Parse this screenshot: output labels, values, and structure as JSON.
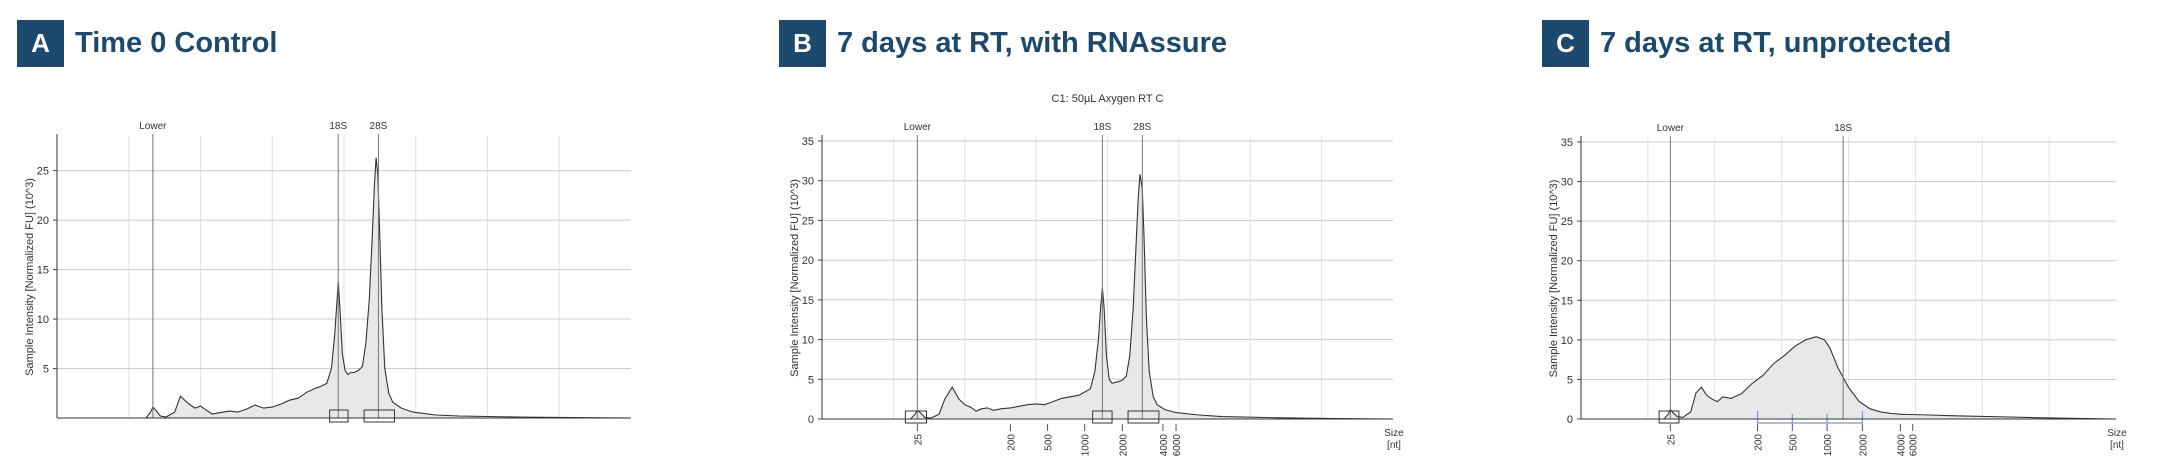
{
  "panels": [
    {
      "letter": "A",
      "title": "Time 0 Control"
    },
    {
      "letter": "B",
      "title": "7 days at RT, with RNAssure"
    },
    {
      "letter": "C",
      "title": "7 days at RT, unprotected"
    }
  ],
  "colors": {
    "badge": "#1c4a6e",
    "title": "#1c4a6e",
    "trace": "#333333",
    "fill": "#e8e8e8",
    "region_c": "#7c93c8",
    "grid": "#cccccc"
  },
  "chart_data": [
    {
      "type": "area",
      "title": "",
      "xlabel": "",
      "ylabel": "Sample Intensity [Normalized FU] (10^3)",
      "ylim": [
        0,
        28.5
      ],
      "yticks": [
        5,
        10,
        15,
        20,
        25
      ],
      "x_tick_labels": [],
      "markers": [
        {
          "label": "Lower",
          "x": 0.167
        },
        {
          "label": "18S",
          "x": 0.49
        },
        {
          "label": "28S",
          "x": 0.56
        }
      ],
      "x": [
        0,
        0.12,
        0.155,
        0.163,
        0.167,
        0.172,
        0.18,
        0.19,
        0.205,
        0.215,
        0.228,
        0.24,
        0.25,
        0.26,
        0.27,
        0.28,
        0.29,
        0.3,
        0.315,
        0.33,
        0.345,
        0.36,
        0.375,
        0.39,
        0.405,
        0.42,
        0.435,
        0.45,
        0.46,
        0.47,
        0.478,
        0.484,
        0.488,
        0.49,
        0.493,
        0.497,
        0.502,
        0.507,
        0.512,
        0.518,
        0.525,
        0.532,
        0.538,
        0.544,
        0.549,
        0.553,
        0.556,
        0.559,
        0.562,
        0.566,
        0.571,
        0.578,
        0.585,
        0.6,
        0.62,
        0.66,
        0.7,
        0.8,
        0.9,
        1.0
      ],
      "values": [
        0,
        0,
        0,
        0.6,
        1.1,
        0.8,
        0.2,
        0.1,
        0.6,
        2.2,
        1.5,
        1.0,
        1.2,
        0.8,
        0.4,
        0.5,
        0.6,
        0.7,
        0.6,
        0.9,
        1.3,
        1.0,
        1.1,
        1.4,
        1.8,
        2.0,
        2.6,
        3.0,
        3.2,
        3.5,
        5.0,
        8.5,
        12.0,
        13.8,
        11.0,
        6.5,
        4.8,
        4.4,
        4.6,
        4.6,
        4.8,
        5.2,
        7.5,
        12.0,
        18.0,
        23.5,
        26.3,
        24.5,
        19.0,
        11.0,
        5.0,
        2.5,
        1.6,
        1.0,
        0.6,
        0.3,
        0.2,
        0.1,
        0.05,
        0.0
      ],
      "regions": [
        {
          "x0": 0.475,
          "x1": 0.507,
          "color": "#333333"
        },
        {
          "x0": 0.535,
          "x1": 0.588,
          "color": "#333333"
        }
      ]
    },
    {
      "type": "area",
      "title": "C1: 50µL Axygen RT C",
      "xlabel": "Size [nt]",
      "ylabel": "Sample Intensity [Normalized FU] (10^3)",
      "ylim": [
        0,
        35.5
      ],
      "yticks": [
        0,
        5,
        10,
        15,
        20,
        25,
        30,
        35
      ],
      "x_tick_labels": [
        {
          "label": "25",
          "x": 0.167
        },
        {
          "label": "200",
          "x": 0.33
        },
        {
          "label": "500",
          "x": 0.395
        },
        {
          "label": "1000",
          "x": 0.46
        },
        {
          "label": "2000",
          "x": 0.526
        },
        {
          "label": "4000",
          "x": 0.597
        },
        {
          "label": "6000",
          "x": 0.62
        }
      ],
      "markers": [
        {
          "label": "Lower",
          "x": 0.167
        },
        {
          "label": "18S",
          "x": 0.491
        },
        {
          "label": "28S",
          "x": 0.561
        }
      ],
      "x": [
        0,
        0.12,
        0.155,
        0.163,
        0.167,
        0.172,
        0.18,
        0.19,
        0.205,
        0.215,
        0.228,
        0.24,
        0.25,
        0.26,
        0.27,
        0.28,
        0.29,
        0.3,
        0.315,
        0.33,
        0.345,
        0.36,
        0.375,
        0.39,
        0.405,
        0.42,
        0.435,
        0.45,
        0.46,
        0.47,
        0.478,
        0.484,
        0.488,
        0.491,
        0.494,
        0.498,
        0.503,
        0.508,
        0.513,
        0.519,
        0.526,
        0.533,
        0.539,
        0.545,
        0.55,
        0.554,
        0.557,
        0.561,
        0.564,
        0.568,
        0.573,
        0.58,
        0.587,
        0.6,
        0.62,
        0.66,
        0.7,
        0.8,
        0.9,
        1.0
      ],
      "values": [
        0,
        0,
        0,
        0.6,
        1.1,
        0.8,
        0.2,
        0.1,
        0.6,
        2.5,
        4.0,
        2.5,
        1.8,
        1.5,
        1.0,
        1.3,
        1.4,
        1.1,
        1.3,
        1.4,
        1.6,
        1.8,
        1.9,
        1.8,
        2.2,
        2.6,
        2.8,
        3.0,
        3.4,
        3.8,
        6.0,
        10.0,
        14.0,
        16.5,
        14.0,
        8.0,
        5.0,
        4.5,
        4.6,
        4.7,
        4.9,
        5.4,
        8.0,
        14.0,
        22.0,
        28.0,
        30.8,
        29.0,
        23.0,
        13.0,
        6.0,
        2.8,
        1.8,
        1.2,
        0.8,
        0.5,
        0.3,
        0.15,
        0.05,
        0.0
      ],
      "regions": [
        {
          "x0": 0.146,
          "x1": 0.183,
          "color": "#333333"
        },
        {
          "x0": 0.474,
          "x1": 0.508,
          "color": "#333333"
        },
        {
          "x0": 0.536,
          "x1": 0.59,
          "color": "#333333"
        }
      ]
    },
    {
      "type": "area",
      "title": "",
      "xlabel": "Size [nt]",
      "ylabel": "Sample Intensity [Normalized FU] (10^3)",
      "ylim": [
        0,
        35.5
      ],
      "yticks": [
        0,
        5,
        10,
        15,
        20,
        25,
        30,
        35
      ],
      "x_tick_labels": [
        {
          "label": "25",
          "x": 0.167
        },
        {
          "label": "200",
          "x": 0.33
        },
        {
          "label": "500",
          "x": 0.395
        },
        {
          "label": "1000",
          "x": 0.46
        },
        {
          "label": "2000",
          "x": 0.526
        },
        {
          "label": "4000",
          "x": 0.597
        },
        {
          "label": "6000",
          "x": 0.62
        }
      ],
      "markers": [
        {
          "label": "Lower",
          "x": 0.167
        },
        {
          "label": "18S",
          "x": 0.49
        }
      ],
      "x": [
        0,
        0.12,
        0.155,
        0.163,
        0.167,
        0.172,
        0.18,
        0.19,
        0.205,
        0.215,
        0.225,
        0.235,
        0.245,
        0.255,
        0.265,
        0.28,
        0.3,
        0.32,
        0.34,
        0.36,
        0.38,
        0.4,
        0.42,
        0.44,
        0.455,
        0.465,
        0.48,
        0.5,
        0.52,
        0.54,
        0.56,
        0.58,
        0.6,
        0.65,
        0.7,
        0.8,
        0.9,
        1.0
      ],
      "values": [
        0,
        0,
        0,
        0.6,
        1.2,
        0.8,
        0.3,
        0.2,
        0.9,
        3.3,
        4.0,
        3.0,
        2.5,
        2.2,
        2.8,
        2.6,
        3.2,
        4.5,
        5.5,
        7.0,
        8.0,
        9.2,
        10.0,
        10.4,
        10.0,
        9.0,
        6.5,
        4.0,
        2.2,
        1.3,
        0.9,
        0.7,
        0.6,
        0.5,
        0.4,
        0.25,
        0.1,
        0.0
      ],
      "regions": [
        {
          "x0": 0.146,
          "x1": 0.183,
          "color": "#333333"
        },
        {
          "x0": 0.33,
          "x1": 0.526,
          "color": "#7c93c8"
        }
      ],
      "region_ticks": [
        0.395,
        0.46
      ]
    }
  ]
}
